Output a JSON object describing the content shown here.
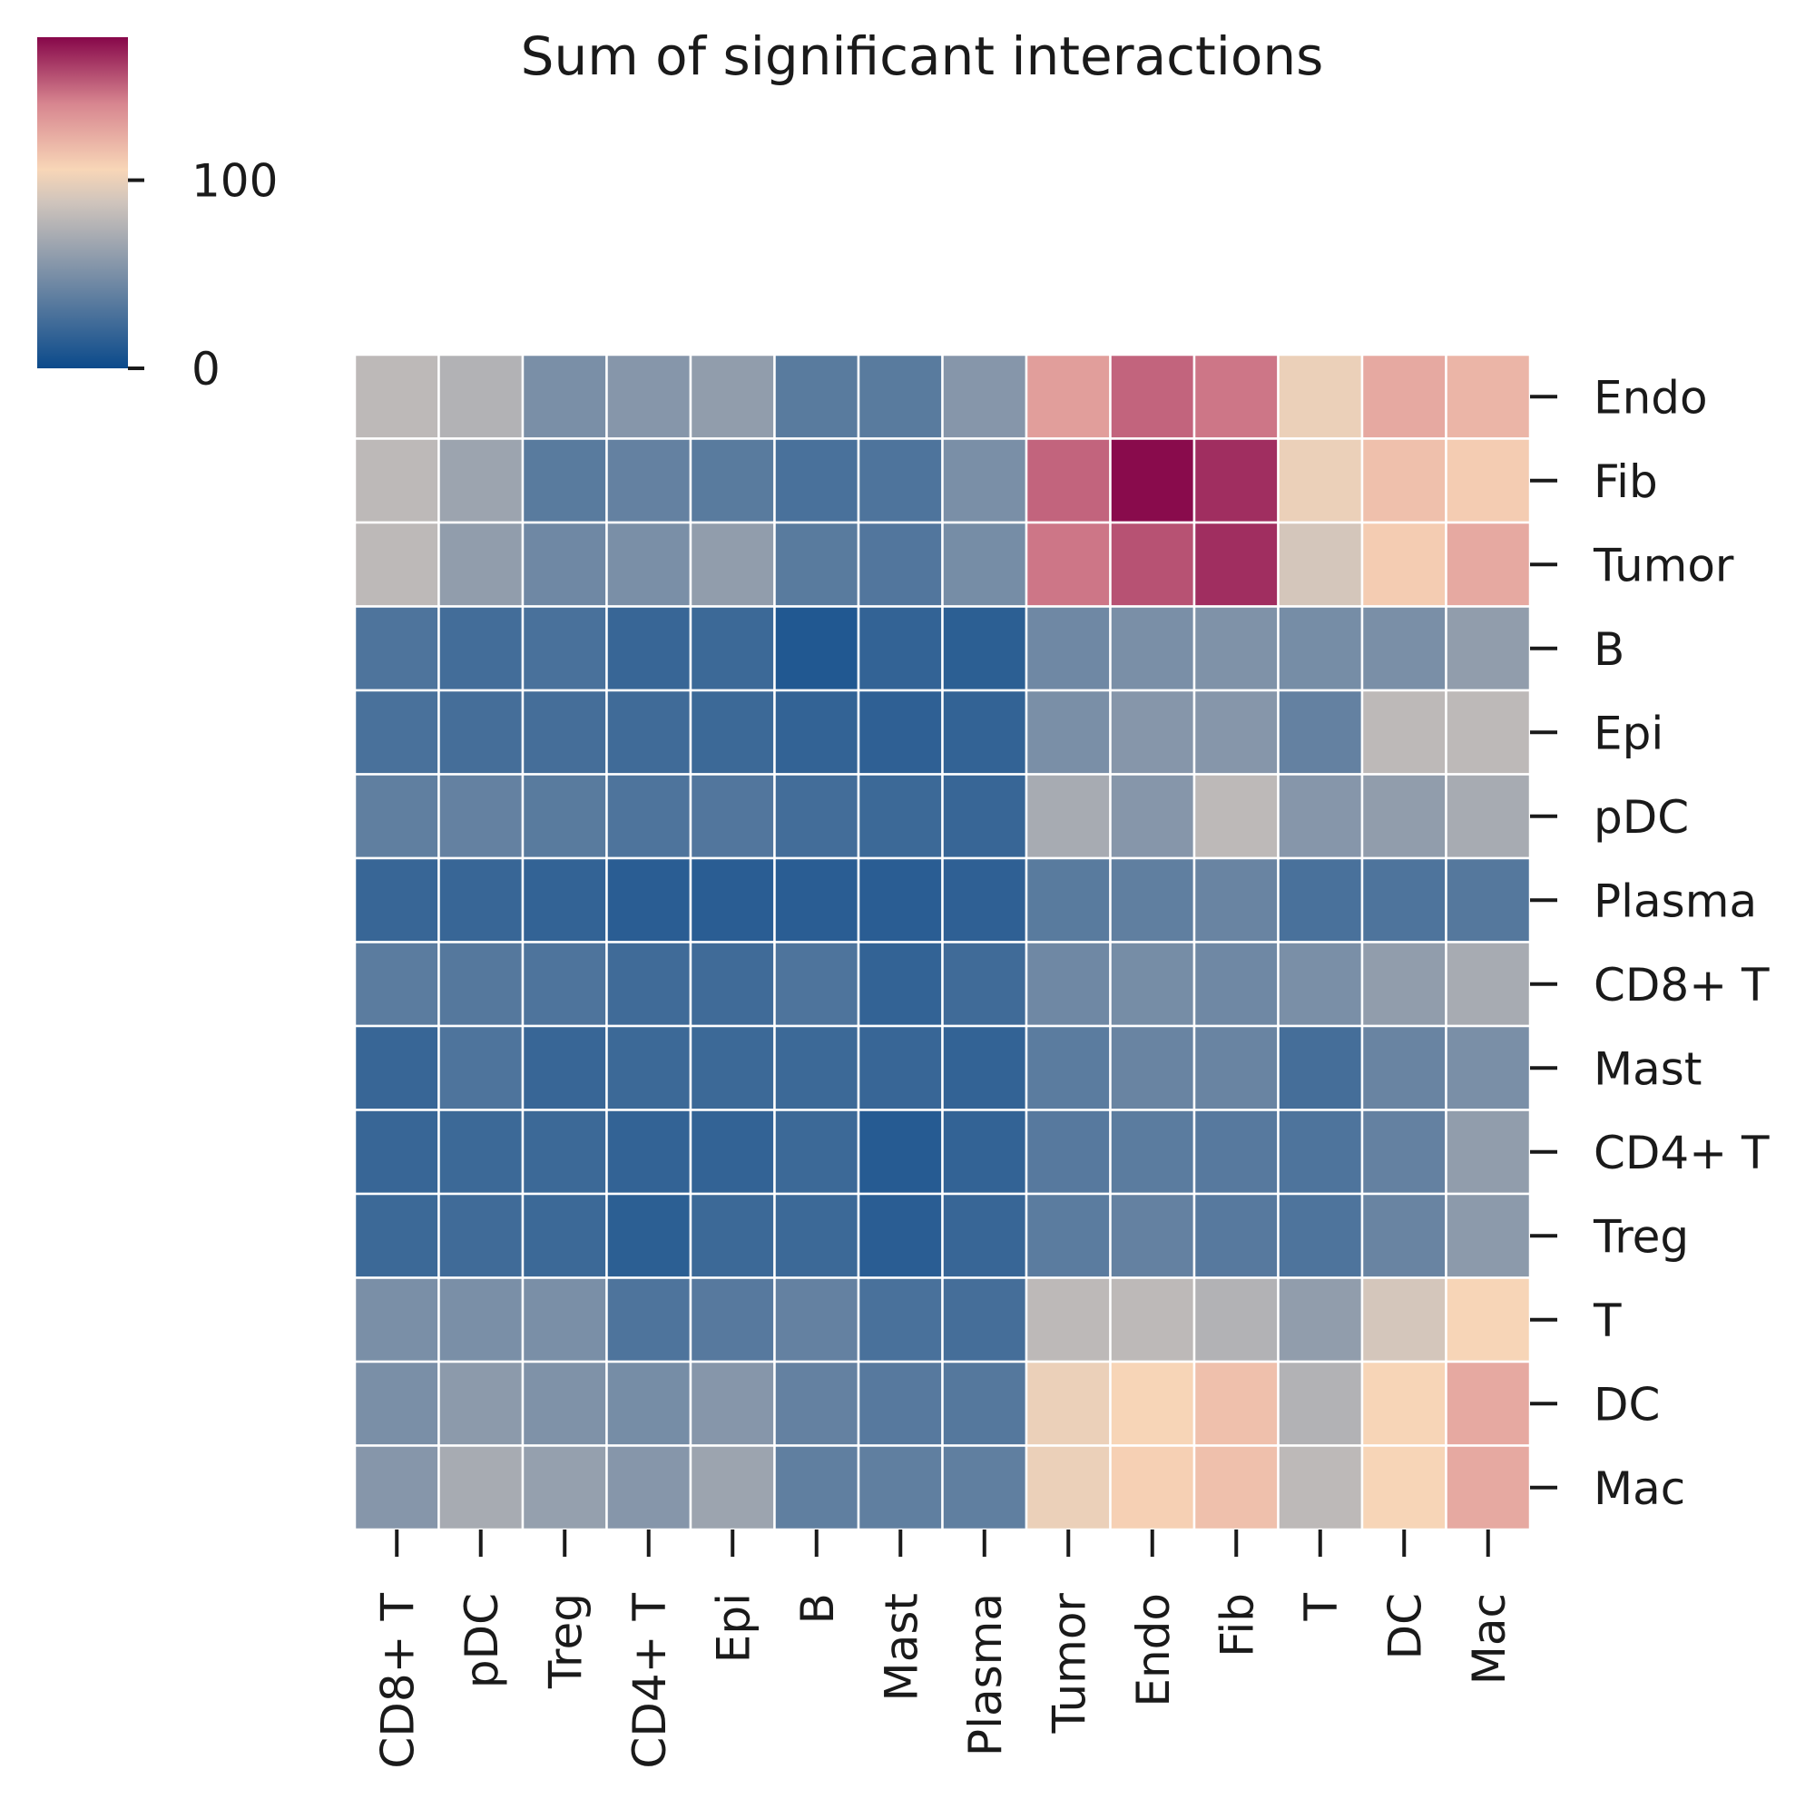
{
  "chart_data": {
    "type": "heatmap",
    "title": "Sum of significant interactions",
    "x_categories": [
      "CD8+ T",
      "pDC",
      "Treg",
      "CD4+ T",
      "Epi",
      "B",
      "Mast",
      "Plasma",
      "Tumor",
      "Endo",
      "Fib",
      "T",
      "DC",
      "Mac"
    ],
    "y_categories": [
      "Endo",
      "Fib",
      "Tumor",
      "B",
      "Epi",
      "pDC",
      "Plasma",
      "CD8+ T",
      "Mast",
      "CD4+ T",
      "Treg",
      "T",
      "DC",
      "Mac"
    ],
    "values": [
      [
        80,
        75,
        50,
        55,
        60,
        35,
        35,
        55,
        130,
        150,
        145,
        100,
        125,
        120
      ],
      [
        80,
        65,
        35,
        40,
        35,
        28,
        30,
        50,
        150,
        175,
        165,
        100,
        115,
        110
      ],
      [
        80,
        60,
        45,
        50,
        60,
        35,
        32,
        48,
        145,
        155,
        165,
        90,
        110,
        125
      ],
      [
        30,
        25,
        28,
        20,
        22,
        10,
        18,
        15,
        45,
        50,
        52,
        48,
        50,
        60
      ],
      [
        28,
        26,
        26,
        24,
        22,
        18,
        16,
        18,
        50,
        55,
        55,
        40,
        80,
        80
      ],
      [
        38,
        40,
        35,
        30,
        32,
        25,
        22,
        20,
        70,
        55,
        80,
        55,
        60,
        70
      ],
      [
        20,
        20,
        18,
        14,
        14,
        14,
        14,
        16,
        35,
        38,
        42,
        28,
        30,
        33
      ],
      [
        36,
        33,
        30,
        24,
        24,
        30,
        18,
        24,
        45,
        48,
        45,
        50,
        60,
        70
      ],
      [
        20,
        30,
        20,
        22,
        22,
        22,
        20,
        18,
        36,
        42,
        42,
        26,
        42,
        50
      ],
      [
        20,
        22,
        22,
        18,
        18,
        22,
        12,
        18,
        34,
        36,
        34,
        30,
        40,
        60
      ],
      [
        22,
        24,
        22,
        15,
        22,
        22,
        14,
        20,
        36,
        40,
        34,
        30,
        42,
        58
      ],
      [
        50,
        50,
        50,
        30,
        34,
        40,
        28,
        26,
        80,
        80,
        75,
        60,
        90,
        105
      ],
      [
        50,
        58,
        52,
        48,
        55,
        40,
        34,
        33,
        100,
        105,
        115,
        75,
        105,
        125
      ],
      [
        55,
        70,
        62,
        55,
        65,
        38,
        38,
        38,
        100,
        108,
        115,
        80,
        105,
        125
      ]
    ],
    "colorbar": {
      "min": 0,
      "max": 176,
      "ticks": [
        0,
        100
      ],
      "tick_labels": [
        "0",
        "100"
      ],
      "colors": [
        "#0b4a8b",
        "#cfc4bc",
        "#f8d6b7",
        "#d7858f",
        "#87074a"
      ],
      "color_stops": [
        0,
        0.5,
        0.6,
        0.8,
        1
      ]
    },
    "grid_lines": "white",
    "legend_placement": "top-left"
  }
}
